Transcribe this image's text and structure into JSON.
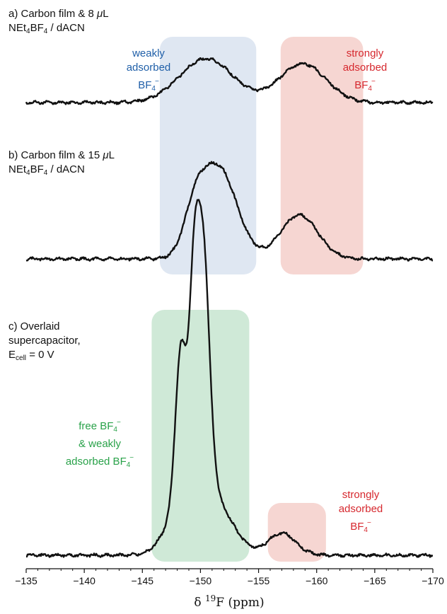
{
  "chart_data": {
    "type": "line",
    "xlabel": "δ 19F (ppm)",
    "xlabel_parts": {
      "delta": "δ",
      "superscript": "19",
      "nucleus": "F",
      "unit": "(ppm)"
    },
    "xlim": [
      -135,
      -170
    ],
    "x_reversed": true,
    "x_ticks": [
      -135,
      -140,
      -145,
      -150,
      -155,
      -160,
      -165,
      -170
    ],
    "x_tick_labels": [
      "−135",
      "−140",
      "−145",
      "−150",
      "−155",
      "−160",
      "−165",
      "−170"
    ],
    "panels": [
      {
        "label": "a) Carbon film & 8 μL",
        "label_line1": "a) Carbon film & 8 ",
        "label_mu": "μ",
        "label_unit": "L",
        "label_line2_prefix": "NEt",
        "label_line2_sub1": "4",
        "label_line2_mid": "BF",
        "label_line2_sub2": "4",
        "label_line2_suffix": " / dACN",
        "regions": [
          {
            "name": "weakly adsorbed BF4−",
            "color": "#dfe7f2",
            "x_range": [
              -146.5,
              -154.8
            ]
          },
          {
            "name": "strongly adsorbed BF4−",
            "color": "#f6d6d2",
            "x_range": [
              -156.9,
              -164.0
            ]
          }
        ],
        "series": [
          {
            "peaks": [
              {
                "x": -150.5,
                "height": 0.62,
                "width": 2.3
              },
              {
                "x": -158.8,
                "height": 0.55,
                "width": 2.0
              }
            ]
          }
        ]
      },
      {
        "label": "b) Carbon film & 15 μL",
        "label_line1": "b) Carbon film & 15 ",
        "label_mu": "μ",
        "label_unit": "L",
        "label_line2_prefix": "NEt",
        "label_line2_sub1": "4",
        "label_line2_mid": "BF",
        "label_line2_sub2": "4",
        "label_line2_suffix": " / dACN",
        "series": [
          {
            "peaks": [
              {
                "x": -149.5,
                "height": 0.35,
                "width": 0.9
              },
              {
                "x": -151.5,
                "height": 1.0,
                "width": 1.6
              },
              {
                "x": -158.5,
                "height": 0.48,
                "width": 1.6
              }
            ]
          }
        ]
      },
      {
        "label": "c) Overlaid supercapacitor, Ecell = 0 V",
        "label_line1": "c) Overlaid",
        "label_line2": "supercapacitor,",
        "label_line3_E": "E",
        "label_line3_sub": "cell",
        "label_line3_rest": " = 0 V",
        "regions": [
          {
            "name": "free BF4− & weakly adsorbed BF4−",
            "color": "#cfe9d7",
            "x_range": [
              -145.8,
              -154.2
            ]
          },
          {
            "name": "strongly adsorbed BF4−",
            "color": "#f6d6d2",
            "x_range": [
              -155.8,
              -160.8
            ]
          }
        ],
        "series": [
          {
            "peaks": [
              {
                "x": -148.3,
                "height": 0.6,
                "width": 0.45
              },
              {
                "x": -149.4,
                "height": 0.63,
                "width": 0.4
              },
              {
                "x": -150.2,
                "height": 1.0,
                "width": 0.55
              },
              {
                "x": -149.3,
                "height": 0.35,
                "width": 1.6
              },
              {
                "x": -152.0,
                "height": 0.12,
                "width": 1.4
              },
              {
                "x": -157.0,
                "height": 0.095,
                "width": 1.2
              }
            ]
          }
        ]
      }
    ],
    "annotations": {
      "weak_a": {
        "line1": "weakly",
        "line2": "adsorbed",
        "line3_base": "BF",
        "sub": "4",
        "sup": "−"
      },
      "strong_a": {
        "line1": "strongly",
        "line2": "adsorbed",
        "line3_base": "BF",
        "sub": "4",
        "sup": "−"
      },
      "free_c": {
        "line1_base": "free BF",
        "line1_sub": "4",
        "line1_sup": "−",
        "line2": "& weakly",
        "line3_base": "adsorbed BF",
        "line3_sub": "4",
        "line3_sup": "−"
      },
      "strong_c": {
        "line1": "strongly",
        "line2": "adsorbed",
        "line3_base": "BF",
        "sub": "4",
        "sup": "−"
      }
    },
    "colors": {
      "weak": "#1f5fa8",
      "strong": "#d6282e",
      "free": "#2aa24a",
      "trace": "#111111"
    },
    "grid": false
  }
}
